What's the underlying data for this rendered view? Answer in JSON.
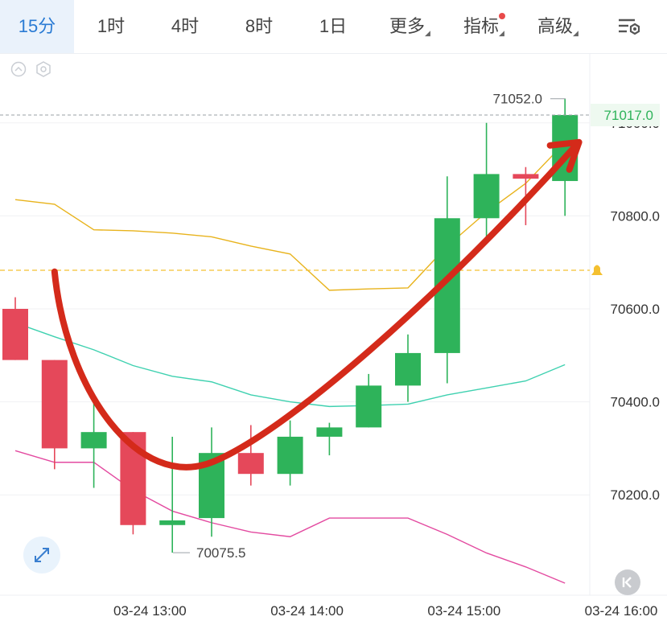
{
  "toolbar": {
    "tabs": [
      {
        "label": "15分",
        "active": true
      },
      {
        "label": "1时",
        "active": false
      },
      {
        "label": "4时",
        "active": false
      },
      {
        "label": "8时",
        "active": false
      },
      {
        "label": "1日",
        "active": false
      },
      {
        "label": "更多",
        "active": false,
        "dropdown": true
      },
      {
        "label": "指标",
        "active": false,
        "dropdown": true,
        "badge": true
      },
      {
        "label": "高级",
        "active": false,
        "dropdown": true
      }
    ],
    "settings_icon": "chart-settings-icon"
  },
  "icons": {
    "collapse": "chevron-up-circle-icon",
    "indicator_settings": "hexagon-gear-icon",
    "expand": "expand-arrows-icon",
    "back_to_latest": "skip-back-icon"
  },
  "colors": {
    "up": "#2eb35a",
    "down": "#e5485a",
    "ma_upper": "#e8b31c",
    "ma_middle": "#3fd1b0",
    "ma_lower": "#e34aa0",
    "annotation_arrow": "#d42a1a",
    "accent": "#2a7bd4",
    "alert": "#f4c030"
  },
  "chart_data": {
    "type": "candlestick",
    "x_tick_labels": [
      "03-24 13:00",
      "03-24 14:00",
      "03-24 15:00",
      "03-24 16:00"
    ],
    "y_tick_labels": [
      "71000.0",
      "70800.0",
      "70600.0",
      "70400.0",
      "70200.0"
    ],
    "y_ticks": [
      71000,
      70800,
      70600,
      70400,
      70200
    ],
    "ylim": [
      70000,
      71180
    ],
    "current_price_label": "71017.0",
    "current_price": 71017,
    "alert_price": 70683,
    "high_label": "71052.0",
    "low_label": "70075.5",
    "candles": [
      {
        "t": "12:15",
        "o": 70600,
        "c": 70490,
        "h": 70625,
        "l": 70490
      },
      {
        "t": "12:30",
        "o": 70490,
        "c": 70300,
        "h": 70490,
        "l": 70255
      },
      {
        "t": "12:45",
        "o": 70300,
        "c": 70335,
        "h": 70410,
        "l": 70215
      },
      {
        "t": "13:00",
        "o": 70335,
        "c": 70135,
        "h": 70335,
        "l": 70115
      },
      {
        "t": "13:15",
        "o": 70135,
        "c": 70145,
        "h": 70325,
        "l": 70075.5
      },
      {
        "t": "13:30",
        "o": 70150,
        "c": 70290,
        "h": 70345,
        "l": 70110
      },
      {
        "t": "13:45",
        "o": 70290,
        "c": 70245,
        "h": 70350,
        "l": 70220
      },
      {
        "t": "14:00",
        "o": 70245,
        "c": 70325,
        "h": 70360,
        "l": 70220
      },
      {
        "t": "14:15",
        "o": 70325,
        "c": 70345,
        "h": 70355,
        "l": 70285
      },
      {
        "t": "14:30",
        "o": 70345,
        "c": 70435,
        "h": 70460,
        "l": 70345
      },
      {
        "t": "14:45",
        "o": 70435,
        "c": 70505,
        "h": 70545,
        "l": 70400
      },
      {
        "t": "15:00",
        "o": 70505,
        "c": 70795,
        "h": 70885,
        "l": 70440
      },
      {
        "t": "15:15",
        "o": 70795,
        "c": 70890,
        "h": 71000,
        "l": 70745
      },
      {
        "t": "15:30",
        "o": 70890,
        "c": 70880,
        "h": 70905,
        "l": 70780
      },
      {
        "t": "15:45",
        "o": 70875,
        "c": 71017,
        "h": 71052,
        "l": 70800
      }
    ],
    "series": [
      {
        "values": [
          70835,
          70825,
          70770,
          70768,
          70763,
          70755,
          70735,
          70718,
          70640,
          70643,
          70645,
          70735,
          70808,
          70870,
          70958
        ]
      },
      {
        "values": [
          70570,
          70540,
          70512,
          70478,
          70455,
          70443,
          70415,
          70400,
          70390,
          70392,
          70395,
          70415,
          70430,
          70445,
          70480
        ]
      },
      {
        "values": [
          70295,
          70270,
          70270,
          70210,
          70165,
          70140,
          70120,
          70110,
          70150,
          70150,
          70150,
          70115,
          70075,
          70045,
          70010
        ]
      }
    ],
    "annotation": {
      "type": "u-shaped-arrow",
      "points": [
        [
          1,
          70680
        ],
        [
          5,
          70270
        ],
        [
          14.5,
          70955
        ]
      ]
    }
  }
}
